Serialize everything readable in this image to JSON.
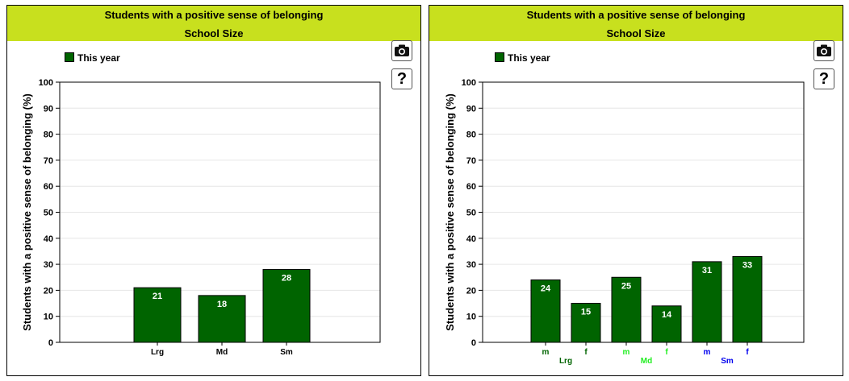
{
  "colors": {
    "header_bg": "#c8e01e",
    "bar": "#006400",
    "bar_label": "#ffffff",
    "lrg": "#006400",
    "md": "#22ee22",
    "sm": "#0000ee"
  },
  "icons": [
    "camera-icon",
    "help-icon"
  ],
  "left": {
    "title": "Students with a positive sense of belonging",
    "subtitle": "School Size",
    "legend_label": "This year",
    "help_symbol": "?"
  },
  "right": {
    "title": "Students with a positive sense of belonging",
    "subtitle": "School Size",
    "legend_label": "This year",
    "help_symbol": "?"
  },
  "chart_data": [
    {
      "type": "bar",
      "title": "Students with a positive sense of belonging",
      "subtitle": "School Size",
      "ylabel": "Students with a positive sense of belonging (%)",
      "xlabel": "",
      "ylim": [
        0,
        100
      ],
      "yticks": [
        0,
        10,
        20,
        30,
        40,
        50,
        60,
        70,
        80,
        90,
        100
      ],
      "grid": true,
      "legend": "top-left",
      "categories": [
        "Lrg",
        "Md",
        "Sm"
      ],
      "series": [
        {
          "name": "This year",
          "values": [
            21,
            18,
            28
          ]
        }
      ]
    },
    {
      "type": "bar",
      "title": "Students with a positive sense of belonging",
      "subtitle": "School Size",
      "ylabel": "Students with a positive sense of belonging (%)",
      "xlabel": "",
      "ylim": [
        0,
        100
      ],
      "yticks": [
        0,
        10,
        20,
        30,
        40,
        50,
        60,
        70,
        80,
        90,
        100
      ],
      "grid": true,
      "legend": "top-left",
      "categories": [
        "m",
        "f",
        "m",
        "f",
        "m",
        "f"
      ],
      "groups": [
        {
          "label": "Lrg",
          "color": "#006400"
        },
        {
          "label": "Md",
          "color": "#22ee22"
        },
        {
          "label": "Sm",
          "color": "#0000ee"
        }
      ],
      "series": [
        {
          "name": "This year",
          "values": [
            24,
            15,
            25,
            14,
            31,
            33
          ]
        }
      ]
    }
  ]
}
